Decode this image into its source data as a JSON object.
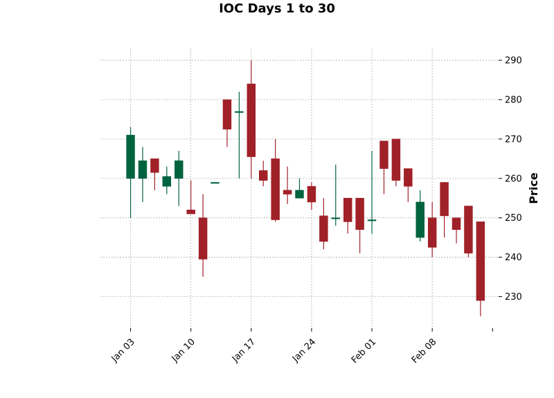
{
  "chart_data": {
    "type": "candlestick",
    "title": "IOC Days 1 to 30",
    "ylabel": "Price",
    "ylim": [
      222,
      293
    ],
    "yticks": [
      230,
      240,
      250,
      260,
      270,
      280,
      290
    ],
    "xlim": [
      -2.5,
      30.5
    ],
    "xticks": [
      {
        "label": "Jan 03",
        "pos": 0
      },
      {
        "label": "Jan 10",
        "pos": 5
      },
      {
        "label": "Jan 17",
        "pos": 10
      },
      {
        "label": "Jan 24",
        "pos": 15
      },
      {
        "label": "Feb 01",
        "pos": 20
      },
      {
        "label": "Feb 08",
        "pos": 25
      },
      {
        "label": "",
        "pos": 30
      }
    ],
    "grid": true,
    "up_color": "#006340",
    "down_color": "#A02128",
    "candles": [
      {
        "date": "Jan 03",
        "open": 260,
        "high": 273,
        "low": 250,
        "close": 271
      },
      {
        "date": "Jan 04",
        "open": 260,
        "high": 268,
        "low": 254,
        "close": 264.5
      },
      {
        "date": "Jan 05",
        "open": 265,
        "high": 265,
        "low": 257,
        "close": 261.5
      },
      {
        "date": "Jan 06",
        "open": 258,
        "high": 263,
        "low": 256,
        "close": 260.5
      },
      {
        "date": "Jan 07",
        "open": 260,
        "high": 267,
        "low": 253,
        "close": 264.5
      },
      {
        "date": "Jan 10",
        "open": 252,
        "high": 259.5,
        "low": 251,
        "close": 251
      },
      {
        "date": "Jan 11",
        "open": 250,
        "high": 256,
        "low": 235,
        "close": 239.5
      },
      {
        "date": "Jan 12",
        "open": 259,
        "high": 259,
        "low": 259,
        "close": 259
      },
      {
        "date": "Jan 13",
        "open": 280,
        "high": 280,
        "low": 268,
        "close": 272.5
      },
      {
        "date": "Jan 14",
        "open": 277,
        "high": 282,
        "low": 260,
        "close": 277
      },
      {
        "date": "Jan 17",
        "open": 284,
        "high": 290,
        "low": 260,
        "close": 265.5
      },
      {
        "date": "Jan 18",
        "open": 262,
        "high": 264.5,
        "low": 258,
        "close": 259.5
      },
      {
        "date": "Jan 19",
        "open": 265,
        "high": 270,
        "low": 249,
        "close": 249.5
      },
      {
        "date": "Jan 20",
        "open": 257,
        "high": 263,
        "low": 253.5,
        "close": 256
      },
      {
        "date": "Jan 21",
        "open": 255,
        "high": 260,
        "low": 255,
        "close": 257
      },
      {
        "date": "Jan 24",
        "open": 258,
        "high": 259,
        "low": 252,
        "close": 254
      },
      {
        "date": "Jan 25",
        "open": 250.5,
        "high": 255,
        "low": 242,
        "close": 244
      },
      {
        "date": "Jan 27",
        "open": 250,
        "high": 263.5,
        "low": 248,
        "close": 250
      },
      {
        "date": "Jan 28",
        "open": 255,
        "high": 255,
        "low": 246,
        "close": 249
      },
      {
        "date": "Jan 29",
        "open": 255,
        "high": 255,
        "low": 241,
        "close": 247
      },
      {
        "date": "Feb 01",
        "open": 249.5,
        "high": 267,
        "low": 246,
        "close": 249.5
      },
      {
        "date": "Feb 02",
        "open": 269.5,
        "high": 269.5,
        "low": 256,
        "close": 262.5
      },
      {
        "date": "Feb 03",
        "open": 270,
        "high": 270,
        "low": 258,
        "close": 259.5
      },
      {
        "date": "Feb 04",
        "open": 262.5,
        "high": 262.5,
        "low": 254,
        "close": 258
      },
      {
        "date": "Feb 07",
        "open": 245,
        "high": 257,
        "low": 244,
        "close": 254
      },
      {
        "date": "Feb 08",
        "open": 250,
        "high": 254,
        "low": 240,
        "close": 242.5
      },
      {
        "date": "Feb 09",
        "open": 259,
        "high": 259,
        "low": 245,
        "close": 250.5
      },
      {
        "date": "Feb 10",
        "open": 250,
        "high": 250,
        "low": 243.5,
        "close": 247
      },
      {
        "date": "Feb 11",
        "open": 253,
        "high": 253,
        "low": 240,
        "close": 241
      },
      {
        "date": "Feb 14",
        "open": 249,
        "high": 249,
        "low": 225,
        "close": 229
      }
    ]
  }
}
